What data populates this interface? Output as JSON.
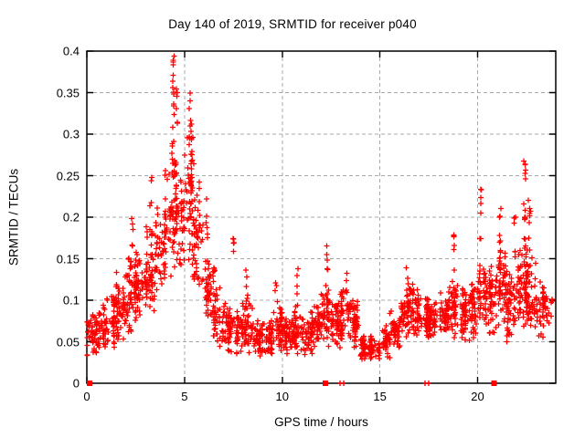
{
  "chart_data": {
    "type": "scatter",
    "title": "Day 140 of 2019, SRMTID for receiver p040",
    "xlabel": "GPS time / hours",
    "ylabel": "SRMTID / TECUs",
    "xlim": [
      0,
      24
    ],
    "ylim": [
      0,
      0.4
    ],
    "xticks": [
      0,
      5,
      10,
      15,
      20
    ],
    "xtick_labels": [
      "0",
      "5",
      "10",
      "15",
      "20"
    ],
    "yticks": [
      0,
      0.05,
      0.1,
      0.15,
      0.2,
      0.25,
      0.3,
      0.35,
      0.4
    ],
    "ytick_labels": [
      "0",
      "0.05",
      "0.1",
      "0.15",
      "0.2",
      "0.25",
      "0.3",
      "0.35",
      "0.4"
    ],
    "grid": true,
    "grid_style": "dashed",
    "grid_color": "#a9a9a9",
    "axis_color": "#000000",
    "legend": "none",
    "marker": "plus",
    "marker_color": "#ff0000",
    "series_name": "SRMTID",
    "seed": 7,
    "envelope_format": [
      "hour_start",
      "hour_end",
      "y_min",
      "y_max",
      "n_points"
    ],
    "envelope": [
      [
        0.0,
        0.5,
        0.03,
        0.09,
        46
      ],
      [
        0.5,
        1.0,
        0.03,
        0.1,
        46
      ],
      [
        1.0,
        1.5,
        0.04,
        0.11,
        46
      ],
      [
        1.5,
        2.0,
        0.04,
        0.14,
        50
      ],
      [
        2.0,
        2.5,
        0.05,
        0.16,
        50
      ],
      [
        2.5,
        3.0,
        0.07,
        0.17,
        50
      ],
      [
        3.0,
        3.5,
        0.08,
        0.19,
        50
      ],
      [
        3.5,
        4.0,
        0.1,
        0.22,
        52
      ],
      [
        4.0,
        4.5,
        0.12,
        0.3,
        52
      ],
      [
        4.5,
        5.0,
        0.13,
        0.28,
        55
      ],
      [
        5.0,
        5.5,
        0.14,
        0.33,
        58
      ],
      [
        5.5,
        6.0,
        0.1,
        0.25,
        52
      ],
      [
        6.0,
        6.5,
        0.07,
        0.16,
        48
      ],
      [
        6.5,
        7.0,
        0.04,
        0.12,
        48
      ],
      [
        7.0,
        7.5,
        0.03,
        0.1,
        45
      ],
      [
        7.5,
        8.0,
        0.03,
        0.1,
        45
      ],
      [
        8.0,
        8.5,
        0.03,
        0.11,
        45
      ],
      [
        8.5,
        9.0,
        0.03,
        0.08,
        45
      ],
      [
        9.0,
        9.5,
        0.03,
        0.08,
        45
      ],
      [
        9.5,
        10.0,
        0.03,
        0.1,
        45
      ],
      [
        10.0,
        10.5,
        0.03,
        0.08,
        45
      ],
      [
        10.5,
        11.0,
        0.03,
        0.1,
        45
      ],
      [
        11.0,
        11.5,
        0.03,
        0.09,
        45
      ],
      [
        11.5,
        12.0,
        0.04,
        0.1,
        45
      ],
      [
        12.0,
        12.5,
        0.04,
        0.12,
        48
      ],
      [
        12.5,
        13.0,
        0.04,
        0.1,
        45
      ],
      [
        13.0,
        13.5,
        0.04,
        0.12,
        48
      ],
      [
        13.5,
        14.0,
        0.04,
        0.11,
        45
      ],
      [
        14.0,
        14.5,
        0.025,
        0.06,
        45
      ],
      [
        14.5,
        15.0,
        0.025,
        0.06,
        45
      ],
      [
        15.0,
        15.5,
        0.03,
        0.07,
        45
      ],
      [
        15.5,
        16.0,
        0.04,
        0.09,
        45
      ],
      [
        16.0,
        16.5,
        0.05,
        0.12,
        48
      ],
      [
        16.5,
        17.0,
        0.05,
        0.12,
        48
      ],
      [
        17.0,
        17.5,
        0.05,
        0.11,
        45
      ],
      [
        17.5,
        18.0,
        0.05,
        0.1,
        45
      ],
      [
        18.0,
        18.5,
        0.05,
        0.11,
        45
      ],
      [
        18.5,
        19.0,
        0.05,
        0.13,
        48
      ],
      [
        19.0,
        19.5,
        0.05,
        0.12,
        45
      ],
      [
        19.5,
        20.0,
        0.05,
        0.13,
        45
      ],
      [
        20.0,
        20.5,
        0.06,
        0.16,
        48
      ],
      [
        20.5,
        21.0,
        0.05,
        0.15,
        48
      ],
      [
        21.0,
        21.5,
        0.06,
        0.17,
        50
      ],
      [
        21.5,
        22.0,
        0.04,
        0.14,
        52
      ],
      [
        22.0,
        22.5,
        0.06,
        0.18,
        58
      ],
      [
        22.5,
        23.0,
        0.06,
        0.16,
        52
      ],
      [
        23.0,
        23.5,
        0.05,
        0.13,
        38
      ],
      [
        23.5,
        23.9,
        0.07,
        0.12,
        14
      ]
    ],
    "spikes_format": [
      "hour",
      "y_base",
      "y_top",
      "n_points"
    ],
    "spikes": [
      [
        2.35,
        0.155,
        0.215,
        5
      ],
      [
        3.3,
        0.17,
        0.25,
        7
      ],
      [
        4.42,
        0.27,
        0.398,
        16
      ],
      [
        4.6,
        0.29,
        0.375,
        6
      ],
      [
        5.3,
        0.28,
        0.35,
        8
      ],
      [
        6.15,
        0.17,
        0.23,
        6
      ],
      [
        7.5,
        0.14,
        0.195,
        5
      ],
      [
        8.2,
        0.1,
        0.14,
        4
      ],
      [
        9.7,
        0.09,
        0.13,
        4
      ],
      [
        10.8,
        0.09,
        0.14,
        5
      ],
      [
        12.3,
        0.1,
        0.17,
        6
      ],
      [
        13.3,
        0.09,
        0.15,
        5
      ],
      [
        16.4,
        0.11,
        0.145,
        4
      ],
      [
        18.8,
        0.12,
        0.19,
        6
      ],
      [
        20.15,
        0.14,
        0.235,
        8
      ],
      [
        21.15,
        0.15,
        0.23,
        8
      ],
      [
        21.9,
        0.14,
        0.2,
        6
      ],
      [
        22.4,
        0.17,
        0.27,
        14
      ],
      [
        22.65,
        0.14,
        0.25,
        8
      ]
    ],
    "zero_markers": [
      {
        "x": 0.15,
        "style": "square"
      },
      {
        "x": 12.2,
        "style": "square"
      },
      {
        "x": 13.05,
        "style": "double-bar"
      },
      {
        "x": 17.4,
        "style": "double-bar"
      },
      {
        "x": 20.85,
        "style": "square"
      }
    ]
  }
}
